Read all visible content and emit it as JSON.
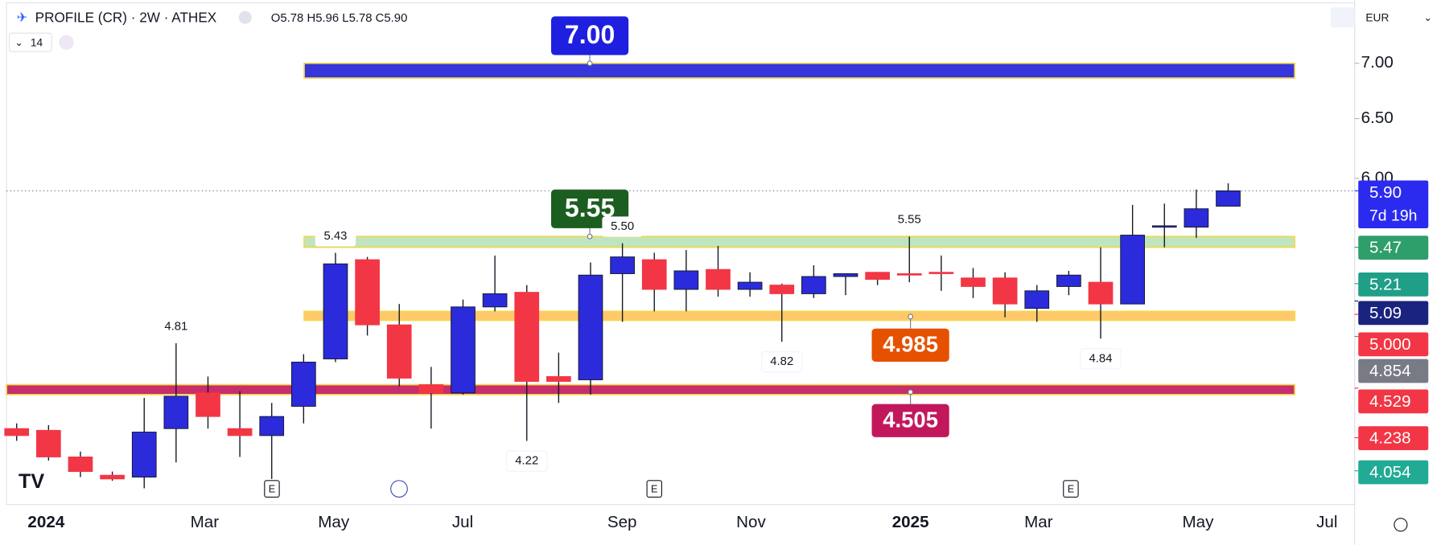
{
  "header": {
    "symbol": "PROFILE (CR) · 2W · ATHEX",
    "ohlc": "O5.78 H5.96 L5.78 C5.90",
    "interval_input": "14",
    "currency": "EUR"
  },
  "chart_data": {
    "type": "candlestick",
    "log_scale": true,
    "up_color": "#2b2bdc",
    "down_color": "#f23645",
    "ylim": [
      3.875,
      7.62
    ],
    "yticks": [
      {
        "value": 7,
        "label": "7.00"
      },
      {
        "value": 6.5,
        "label": "6.50"
      },
      {
        "value": 6,
        "label": "6.00"
      }
    ],
    "xlabels": [
      "2024",
      "Mar",
      "May",
      "Jul",
      "Sep",
      "Nov",
      "2025",
      "Mar",
      "May",
      "Jul"
    ],
    "last_price": 5.9,
    "candles": [
      {
        "o": 4.29,
        "h": 4.32,
        "l": 4.22,
        "c": 4.25
      },
      {
        "o": 4.28,
        "h": 4.31,
        "l": 4.11,
        "c": 4.13
      },
      {
        "o": 4.13,
        "h": 4.16,
        "l": 4.02,
        "c": 4.05
      },
      {
        "o": 4.03,
        "h": 4.05,
        "l": 4.0,
        "c": 4.01
      },
      {
        "o": 4.02,
        "h": 4.47,
        "l": 3.96,
        "c": 4.27
      },
      {
        "o": 4.29,
        "h": 4.81,
        "l": 4.1,
        "c": 4.48,
        "high_label": "4.81"
      },
      {
        "o": 4.5,
        "h": 4.6,
        "l": 4.29,
        "c": 4.36
      },
      {
        "o": 4.29,
        "h": 4.51,
        "l": 4.13,
        "c": 4.25
      },
      {
        "o": 4.25,
        "h": 4.44,
        "l": 4.01,
        "c": 4.36
      },
      {
        "o": 4.42,
        "h": 4.74,
        "l": 4.32,
        "c": 4.69
      },
      {
        "o": 4.71,
        "h": 5.43,
        "l": 4.69,
        "c": 5.35,
        "high_label": "5.43"
      },
      {
        "o": 5.38,
        "h": 5.4,
        "l": 4.86,
        "c": 4.93
      },
      {
        "o": 4.93,
        "h": 5.07,
        "l": 4.54,
        "c": 4.59
      },
      {
        "o": 4.55,
        "h": 4.66,
        "l": 4.29,
        "c": 4.5
      },
      {
        "o": 4.5,
        "h": 5.1,
        "l": 4.49,
        "c": 5.05
      },
      {
        "o": 5.05,
        "h": 5.41,
        "l": 5.02,
        "c": 5.14
      },
      {
        "o": 5.15,
        "h": 5.2,
        "l": 4.22,
        "c": 4.57,
        "low_label": "4.22"
      },
      {
        "o": 4.6,
        "h": 4.75,
        "l": 4.44,
        "c": 4.57
      },
      {
        "o": 4.58,
        "h": 5.36,
        "l": 4.49,
        "c": 5.27
      },
      {
        "o": 5.28,
        "h": 5.5,
        "l": 4.95,
        "c": 5.4,
        "high_label": "5.50"
      },
      {
        "o": 5.38,
        "h": 5.43,
        "l": 5.02,
        "c": 5.17
      },
      {
        "o": 5.17,
        "h": 5.45,
        "l": 5.02,
        "c": 5.3
      },
      {
        "o": 5.31,
        "h": 5.48,
        "l": 5.12,
        "c": 5.17
      },
      {
        "o": 5.17,
        "h": 5.29,
        "l": 5.12,
        "c": 5.22
      },
      {
        "o": 5.2,
        "h": 5.21,
        "l": 4.82,
        "c": 5.14,
        "low_label": "4.82"
      },
      {
        "o": 5.14,
        "h": 5.34,
        "l": 5.11,
        "c": 5.26
      },
      {
        "o": 5.26,
        "h": 5.28,
        "l": 5.13,
        "c": 5.28
      },
      {
        "o": 5.29,
        "h": 5.29,
        "l": 5.2,
        "c": 5.24
      },
      {
        "o": 5.28,
        "h": 5.55,
        "l": 5.22,
        "c": 5.27,
        "high_label": "5.55"
      },
      {
        "o": 5.29,
        "h": 5.41,
        "l": 5.16,
        "c": 5.28
      },
      {
        "o": 5.25,
        "h": 5.32,
        "l": 5.11,
        "c": 5.19
      },
      {
        "o": 5.25,
        "h": 5.29,
        "l": 4.98,
        "c": 5.07
      },
      {
        "o": 5.04,
        "h": 5.2,
        "l": 4.95,
        "c": 5.16
      },
      {
        "o": 5.19,
        "h": 5.3,
        "l": 5.13,
        "c": 5.27
      },
      {
        "o": 5.22,
        "h": 5.47,
        "l": 4.84,
        "c": 5.07,
        "low_label": "4.84"
      },
      {
        "o": 5.07,
        "h": 5.79,
        "l": 5.07,
        "c": 5.56
      },
      {
        "o": 5.62,
        "h": 5.8,
        "l": 5.47,
        "c": 5.63
      },
      {
        "o": 5.62,
        "h": 5.91,
        "l": 5.54,
        "c": 5.76
      },
      {
        "o": 5.78,
        "h": 5.96,
        "l": 5.78,
        "c": 5.9
      }
    ],
    "zones": [
      {
        "high": 7.0,
        "low": 6.863,
        "level": 7.0,
        "label": "7.00",
        "color": "#2121d6",
        "label_color": "#1f1fe0"
      },
      {
        "high": 5.55,
        "low": 5.47,
        "level": 5.55,
        "label": "5.55",
        "color": "#b9e3b9",
        "label_color": "#1b5e20"
      },
      {
        "high": 5.02,
        "low": 4.96,
        "level": 4.985,
        "label": "4.985",
        "color": "#ffc45c",
        "label_color": "#e65100"
      },
      {
        "high": 4.55,
        "low": 4.49,
        "level": 4.505,
        "label": "4.505",
        "color": "#c2185b",
        "label_color": "#c2185b"
      }
    ],
    "price_labels": [
      {
        "value": 5.9,
        "label": "5.90",
        "color": "#2b2bf0",
        "sublabel": "7d 19h"
      },
      {
        "value": 5.47,
        "label": "5.47",
        "color": "#2e9e6a"
      },
      {
        "value": 5.21,
        "label": "5.21",
        "color": "#1f9e88"
      },
      {
        "value": 5.09,
        "label": "5.09",
        "color": "#1a237e"
      },
      {
        "value": 5.0,
        "label": "5.000",
        "color": "#f23645"
      },
      {
        "value": 4.854,
        "label": "4.854",
        "color": "#787b86"
      },
      {
        "value": 4.529,
        "label": "4.529",
        "color": "#f23645"
      },
      {
        "value": 4.238,
        "label": "4.238",
        "color": "#f23645"
      },
      {
        "value": 4.054,
        "label": "4.054",
        "color": "#22ab94"
      }
    ]
  }
}
